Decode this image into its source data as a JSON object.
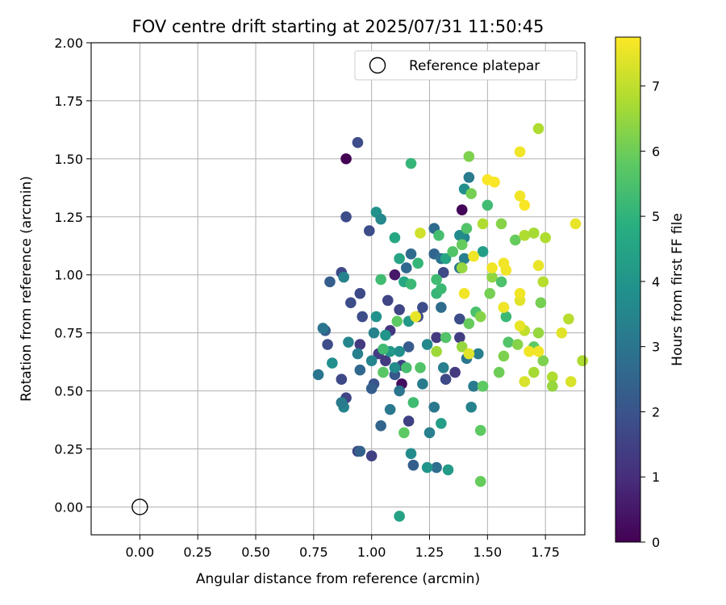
{
  "chart_data": {
    "type": "scatter",
    "title": "FOV centre drift starting at 2025/07/31 11:50:45",
    "xlabel": "Angular distance from reference (arcmin)",
    "ylabel": "Rotation from reference (arcmin)",
    "xlim": [
      -0.21,
      1.92
    ],
    "ylim": [
      -0.12,
      2.0
    ],
    "xticks": [
      "0.00",
      "0.25",
      "0.50",
      "0.75",
      "1.00",
      "1.25",
      "1.50",
      "1.75"
    ],
    "yticks": [
      "0.00",
      "0.25",
      "0.50",
      "0.75",
      "1.00",
      "1.25",
      "1.50",
      "1.75",
      "2.00"
    ],
    "grid": true,
    "legend": {
      "position": "top-right",
      "label": "Reference platepar"
    },
    "reference_point": {
      "x": 0.0,
      "y": 0.0
    },
    "colorbar": {
      "label": "Hours from first FF file",
      "range": [
        0,
        7.75
      ],
      "ticks": [
        "0",
        "1",
        "2",
        "3",
        "4",
        "5",
        "6",
        "7"
      ],
      "colormap": "viridis"
    },
    "points": [
      [
        0.89,
        1.5,
        0.0
      ],
      [
        1.39,
        1.28,
        0.1
      ],
      [
        1.1,
        1.0,
        0.5
      ],
      [
        1.13,
        0.53,
        0.3
      ],
      [
        0.94,
        1.57,
        1.8
      ],
      [
        0.89,
        1.25,
        1.8
      ],
      [
        0.99,
        1.19,
        1.8
      ],
      [
        0.87,
        1.01,
        1.7
      ],
      [
        0.82,
        0.97,
        2.3
      ],
      [
        0.95,
        0.92,
        1.7
      ],
      [
        0.91,
        0.88,
        1.8
      ],
      [
        0.96,
        0.82,
        1.8
      ],
      [
        0.8,
        0.76,
        2.3
      ],
      [
        0.81,
        0.7,
        1.8
      ],
      [
        0.95,
        0.7,
        1.3
      ],
      [
        1.07,
        0.89,
        1.6
      ],
      [
        1.12,
        0.85,
        1.6
      ],
      [
        1.2,
        0.82,
        1.7
      ],
      [
        1.22,
        0.86,
        1.8
      ],
      [
        1.08,
        0.76,
        1.2
      ],
      [
        1.16,
        0.69,
        2.2
      ],
      [
        1.13,
        0.61,
        1.5
      ],
      [
        1.03,
        0.66,
        1.4
      ],
      [
        1.06,
        0.63,
        1.3
      ],
      [
        1.1,
        0.57,
        2.1
      ],
      [
        0.95,
        0.59,
        2.6
      ],
      [
        0.87,
        0.55,
        1.7
      ],
      [
        0.89,
        0.47,
        1.6
      ],
      [
        1.01,
        0.53,
        2.0
      ],
      [
        1.0,
        0.51,
        2.3
      ],
      [
        1.04,
        0.35,
        2.5
      ],
      [
        1.16,
        0.37,
        1.5
      ],
      [
        0.94,
        0.24,
        1.6
      ],
      [
        0.95,
        0.24,
        2.4
      ],
      [
        1.0,
        0.22,
        1.5
      ],
      [
        1.18,
        0.18,
        2.3
      ],
      [
        1.28,
        0.17,
        2.8
      ],
      [
        1.28,
        0.73,
        1.3
      ],
      [
        1.32,
        0.55,
        1.7
      ],
      [
        1.36,
        0.58,
        1.3
      ],
      [
        1.3,
        0.86,
        2.7
      ],
      [
        1.38,
        0.81,
        1.8
      ],
      [
        1.38,
        0.73,
        1.4
      ],
      [
        1.31,
        1.01,
        1.7
      ],
      [
        1.27,
        1.2,
        2.7
      ],
      [
        1.27,
        1.09,
        2.5
      ],
      [
        1.15,
        1.03,
        2.6
      ],
      [
        1.17,
        1.09,
        2.7
      ],
      [
        1.3,
        1.07,
        2.9
      ],
      [
        1.38,
        1.03,
        3.1
      ],
      [
        1.4,
        1.07,
        3.3
      ],
      [
        1.4,
        1.16,
        3.5
      ],
      [
        1.38,
        1.17,
        3.7
      ],
      [
        1.4,
        1.37,
        3.8
      ],
      [
        1.42,
        1.42,
        3.2
      ],
      [
        1.02,
        1.27,
        3.9
      ],
      [
        1.04,
        1.24,
        3.6
      ],
      [
        0.88,
        0.99,
        3.4
      ],
      [
        0.77,
        0.57,
        3.0
      ],
      [
        0.79,
        0.77,
        3.0
      ],
      [
        0.83,
        0.62,
        3.8
      ],
      [
        0.88,
        0.43,
        3.4
      ],
      [
        0.87,
        0.45,
        3.2
      ],
      [
        0.9,
        0.71,
        3.5
      ],
      [
        0.94,
        0.66,
        3.3
      ],
      [
        1.0,
        0.63,
        3.5
      ],
      [
        1.01,
        0.75,
        3.4
      ],
      [
        1.02,
        0.82,
        3.9
      ],
      [
        1.06,
        0.74,
        4.0
      ],
      [
        1.12,
        0.67,
        3.8
      ],
      [
        1.08,
        0.67,
        4.1
      ],
      [
        1.1,
        0.6,
        3.7
      ],
      [
        1.08,
        0.42,
        3.1
      ],
      [
        1.12,
        0.5,
        3.0
      ],
      [
        1.22,
        0.53,
        3.2
      ],
      [
        1.24,
        0.7,
        3.6
      ],
      [
        1.25,
        0.32,
        3.3
      ],
      [
        1.27,
        0.43,
        3.1
      ],
      [
        1.17,
        0.23,
        3.7
      ],
      [
        1.24,
        0.17,
        4.0
      ],
      [
        1.3,
        0.36,
        4.3
      ],
      [
        1.33,
        0.16,
        4.2
      ],
      [
        1.31,
        0.6,
        3.3
      ],
      [
        1.43,
        0.43,
        3.4
      ],
      [
        1.41,
        0.64,
        3.0
      ],
      [
        1.44,
        0.52,
        3.2
      ],
      [
        1.46,
        0.66,
        3.3
      ],
      [
        1.12,
        -0.04,
        4.4
      ],
      [
        1.16,
        0.8,
        4.1
      ],
      [
        1.1,
        1.16,
        4.6
      ],
      [
        1.12,
        1.07,
        4.5
      ],
      [
        1.14,
        0.97,
        4.6
      ],
      [
        1.17,
        0.96,
        5.2
      ],
      [
        1.2,
        1.05,
        5.1
      ],
      [
        1.28,
        0.98,
        5.3
      ],
      [
        1.29,
        1.17,
        5.4
      ],
      [
        1.32,
        1.07,
        4.5
      ],
      [
        1.28,
        0.92,
        5.1
      ],
      [
        1.3,
        0.94,
        5.2
      ],
      [
        1.41,
        1.2,
        5.6
      ],
      [
        1.43,
        1.35,
        6.1
      ],
      [
        1.39,
        1.13,
        5.9
      ],
      [
        1.35,
        1.1,
        5.6
      ],
      [
        1.48,
        1.1,
        4.3
      ],
      [
        1.48,
        1.22,
        6.8
      ],
      [
        1.5,
        1.3,
        5.3
      ],
      [
        1.42,
        1.51,
        6.2
      ],
      [
        1.17,
        1.48,
        5.1
      ],
      [
        1.04,
        0.98,
        5.3
      ],
      [
        1.15,
        0.6,
        5.4
      ],
      [
        1.18,
        0.45,
        5.3
      ],
      [
        1.21,
        0.6,
        5.6
      ],
      [
        1.11,
        0.8,
        5.8
      ],
      [
        1.05,
        0.58,
        5.7
      ],
      [
        1.05,
        0.68,
        5.3
      ],
      [
        1.14,
        0.32,
        5.8
      ],
      [
        1.32,
        0.73,
        5.6
      ],
      [
        1.28,
        0.67,
        6.6
      ],
      [
        1.39,
        0.69,
        6.5
      ],
      [
        1.42,
        0.79,
        5.9
      ],
      [
        1.45,
        0.84,
        5.5
      ],
      [
        1.47,
        0.82,
        6.3
      ],
      [
        1.48,
        0.52,
        5.8
      ],
      [
        1.47,
        0.33,
        5.8
      ],
      [
        1.47,
        0.11,
        5.9
      ],
      [
        1.39,
        1.03,
        6.5
      ],
      [
        1.51,
        0.92,
        6.1
      ],
      [
        1.52,
        0.99,
        6.4
      ],
      [
        1.56,
        0.97,
        5.5
      ],
      [
        1.57,
        0.86,
        5.9
      ],
      [
        1.58,
        0.82,
        5.2
      ],
      [
        1.59,
        0.71,
        5.6
      ],
      [
        1.55,
        0.58,
        6.0
      ],
      [
        1.57,
        0.65,
        6.2
      ],
      [
        1.63,
        0.7,
        6.3
      ],
      [
        1.62,
        1.15,
        5.9
      ],
      [
        1.56,
        1.22,
        6.3
      ],
      [
        1.66,
        1.17,
        6.8
      ],
      [
        1.7,
        1.18,
        6.7
      ],
      [
        1.75,
        1.16,
        6.8
      ],
      [
        1.74,
        0.97,
        6.9
      ],
      [
        1.73,
        0.88,
        6.1
      ],
      [
        1.72,
        0.75,
        6.5
      ],
      [
        1.7,
        0.69,
        5.8
      ],
      [
        1.74,
        0.63,
        6.2
      ],
      [
        1.7,
        0.58,
        6.7
      ],
      [
        1.78,
        0.56,
        6.8
      ],
      [
        1.78,
        0.52,
        6.5
      ],
      [
        1.72,
        1.63,
        6.8
      ],
      [
        1.66,
        0.76,
        7.0
      ],
      [
        1.64,
        0.89,
        7.4
      ],
      [
        1.64,
        0.92,
        7.6
      ],
      [
        1.64,
        0.78,
        7.5
      ],
      [
        1.66,
        0.54,
        7.3
      ],
      [
        1.68,
        0.67,
        7.6
      ],
      [
        1.72,
        0.67,
        7.6
      ],
      [
        1.72,
        1.04,
        7.5
      ],
      [
        1.82,
        0.75,
        7.4
      ],
      [
        1.85,
        0.81,
        6.9
      ],
      [
        1.86,
        0.54,
        7.3
      ],
      [
        1.88,
        1.22,
        7.5
      ],
      [
        1.91,
        0.63,
        6.8
      ],
      [
        1.66,
        1.3,
        7.7
      ],
      [
        1.64,
        1.34,
        7.6
      ],
      [
        1.64,
        1.53,
        7.6
      ],
      [
        1.5,
        1.41,
        7.7
      ],
      [
        1.53,
        1.4,
        7.7
      ],
      [
        1.58,
        1.02,
        7.6
      ],
      [
        1.57,
        1.05,
        7.6
      ],
      [
        1.52,
        1.03,
        7.6
      ],
      [
        1.57,
        0.86,
        7.6
      ],
      [
        1.44,
        1.08,
        7.6
      ],
      [
        1.4,
        0.92,
        7.6
      ],
      [
        1.42,
        0.66,
        7.4
      ],
      [
        1.19,
        0.82,
        7.5
      ],
      [
        1.21,
        1.18,
        7.2
      ]
    ]
  }
}
